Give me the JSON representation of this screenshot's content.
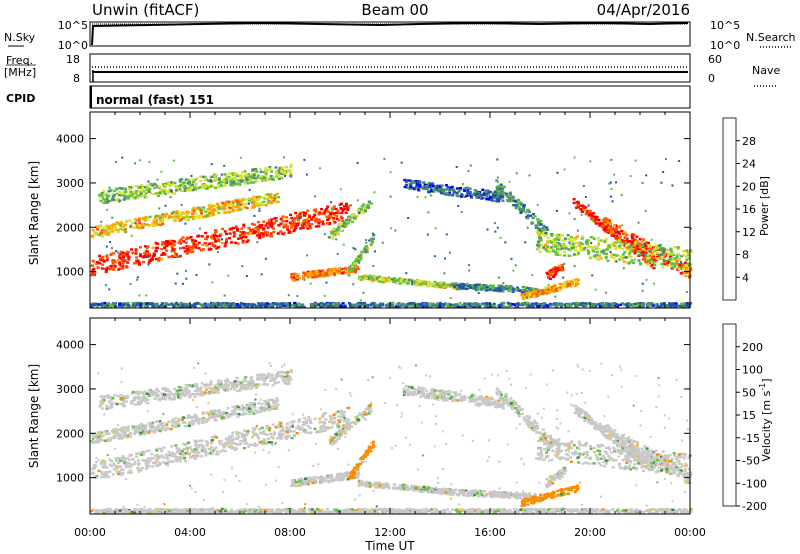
{
  "header": {
    "station": "Unwin (fitACF)",
    "beam": "Beam 00",
    "date": "04/Apr/2016"
  },
  "noise_panel": {
    "left_label": "N.Sky",
    "right_label": "N.Search",
    "left_ticks": [
      "10^5",
      "10^0"
    ],
    "right_ticks": [
      "10^5",
      "10^0"
    ]
  },
  "freq_panel": {
    "left_label_1": "Freq.",
    "left_label_2": "[MHz]",
    "right_label": "Nave",
    "left_ticks": [
      "18",
      "8"
    ],
    "right_ticks": [
      "60",
      "0"
    ]
  },
  "cpid_panel": {
    "label": "CPID",
    "program": "normal (fast) 151"
  },
  "chart_data": [
    {
      "type": "heatmap",
      "title": "",
      "xlabel": "",
      "ylabel": "Slant Range [km]",
      "x_range_hours": [
        0,
        24
      ],
      "y_range_km": [
        180,
        4600
      ],
      "yticks": [
        "1000",
        "2000",
        "3000",
        "4000"
      ],
      "colorbar": {
        "label": "Power [dB]",
        "ticks": [
          "4",
          "8",
          "12",
          "16",
          "20",
          "24",
          "28"
        ],
        "colors": [
          "#0000ff",
          "#2255aa",
          "#4f8f6f",
          "#5fbf3f",
          "#d8e030",
          "#ffa000",
          "#ff5500",
          "#ff0000"
        ]
      }
    },
    {
      "type": "heatmap",
      "title": "",
      "xlabel": "Time UT",
      "ylabel": "Slant Range [km]",
      "x_range_hours": [
        0,
        24
      ],
      "y_range_km": [
        180,
        4600
      ],
      "yticks": [
        "1000",
        "2000",
        "3000",
        "4000"
      ],
      "xticks": [
        "00:00",
        "04:00",
        "08:00",
        "12:00",
        "16:00",
        "20:00",
        "00:00"
      ],
      "colorbar": {
        "label": "Velocity [m s",
        "label_exp": "-1",
        "label_close": "]",
        "ticks": [
          "200",
          "100",
          "50",
          "15",
          "-15",
          "-50",
          "-100",
          "-200"
        ],
        "colors": [
          "#2030a0",
          "#3a8a40",
          "#60c040",
          "#c8c8c8",
          "#f0c040",
          "#ff8c00",
          "#ff4000",
          "#ee0000"
        ]
      }
    }
  ]
}
